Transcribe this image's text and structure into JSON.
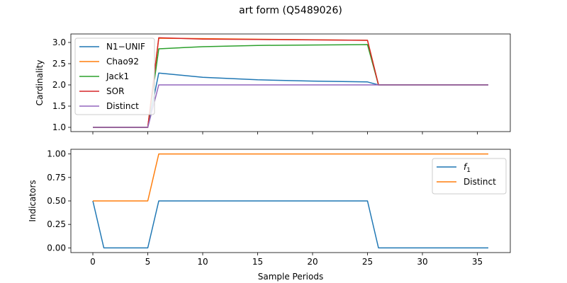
{
  "title": "art form (Q5489026)",
  "chart_data": [
    {
      "type": "line",
      "ylabel": "Cardinality",
      "xlabel": "",
      "xlim": [
        -2,
        38
      ],
      "ylim": [
        0.9,
        3.2
      ],
      "xticks": [
        0,
        5,
        10,
        15,
        20,
        25,
        30,
        35
      ],
      "yticks": [
        1.0,
        1.5,
        2.0,
        2.5,
        3.0
      ],
      "ytick_labels": [
        "1.0",
        "1.5",
        "2.0",
        "2.5",
        "3.0"
      ],
      "show_xtick_labels": false,
      "legend_position": "upper-left",
      "series": [
        {
          "name": "N1−UNIF",
          "color": "#1f77b4",
          "x": [
            0,
            5,
            6,
            10,
            15,
            20,
            25,
            26,
            36
          ],
          "y": [
            1.0,
            1.0,
            2.28,
            2.18,
            2.12,
            2.09,
            2.07,
            2.0,
            2.0
          ]
        },
        {
          "name": "Chao92",
          "color": "#ff7f0e",
          "x": [
            0,
            5,
            6,
            25,
            26,
            36
          ],
          "y": [
            1.0,
            1.0,
            3.1,
            3.05,
            2.0,
            2.0
          ]
        },
        {
          "name": "Jack1",
          "color": "#2ca02c",
          "x": [
            0,
            5,
            6,
            10,
            15,
            20,
            25,
            26,
            36
          ],
          "y": [
            1.0,
            1.0,
            2.85,
            2.9,
            2.93,
            2.94,
            2.95,
            2.0,
            2.0
          ]
        },
        {
          "name": "SOR",
          "color": "#d62728",
          "x": [
            0,
            5,
            6,
            10,
            15,
            20,
            25,
            26,
            36
          ],
          "y": [
            1.0,
            1.0,
            3.11,
            3.08,
            3.07,
            3.06,
            3.05,
            2.0,
            2.0
          ]
        },
        {
          "name": "Distinct",
          "color": "#9467bd",
          "x": [
            0,
            5,
            6,
            36
          ],
          "y": [
            1.0,
            1.0,
            2.0,
            2.0
          ]
        }
      ]
    },
    {
      "type": "line",
      "ylabel": "Indicators",
      "xlabel": "Sample Periods",
      "xlim": [
        -2,
        38
      ],
      "ylim": [
        -0.05,
        1.05
      ],
      "xticks": [
        0,
        5,
        10,
        15,
        20,
        25,
        30,
        35
      ],
      "yticks": [
        0.0,
        0.25,
        0.5,
        0.75,
        1.0
      ],
      "ytick_labels": [
        "0.00",
        "0.25",
        "0.50",
        "0.75",
        "1.00"
      ],
      "show_xtick_labels": true,
      "legend_position": "upper-right",
      "series": [
        {
          "name": "f1",
          "color": "#1f77b4",
          "x": [
            0,
            1,
            5,
            6,
            25,
            26,
            36
          ],
          "y": [
            0.5,
            0.0,
            0.0,
            0.5,
            0.5,
            0.0,
            0.0
          ]
        },
        {
          "name": "Distinct",
          "color": "#ff7f0e",
          "x": [
            0,
            5,
            6,
            36
          ],
          "y": [
            0.5,
            0.5,
            1.0,
            1.0
          ]
        }
      ]
    }
  ]
}
